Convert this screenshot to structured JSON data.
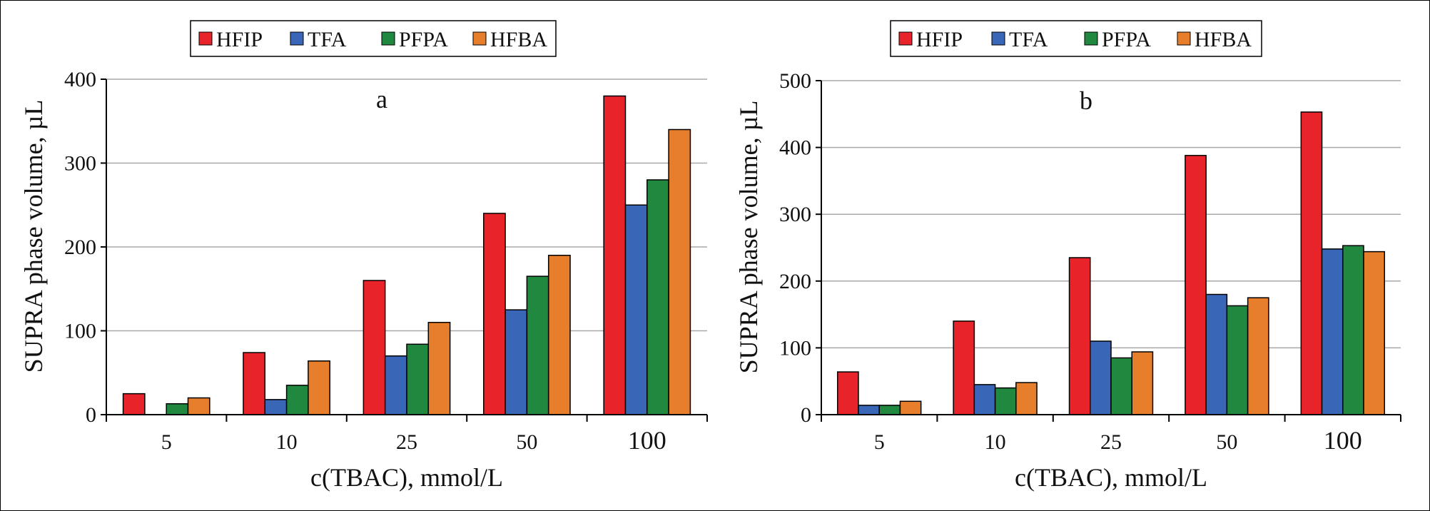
{
  "chart_data": [
    {
      "type": "bar",
      "title": "",
      "panel_label": "a",
      "categories": [
        "5",
        "10",
        "25",
        "50",
        "100"
      ],
      "series": [
        {
          "name": "HFIP",
          "color": "#e8232a",
          "values": [
            25,
            74,
            160,
            240,
            380
          ]
        },
        {
          "name": "TFA",
          "color": "#3a66b7",
          "values": [
            0,
            18,
            70,
            125,
            250
          ]
        },
        {
          "name": "PFPA",
          "color": "#20893f",
          "values": [
            13,
            35,
            84,
            165,
            280
          ]
        },
        {
          "name": "HFBA",
          "color": "#e67e2c",
          "values": [
            20,
            64,
            110,
            190,
            340
          ]
        }
      ],
      "xlabel": "c(TBAC), mmol/L",
      "ylabel": "SUPRA phase volume, µL",
      "ylim": [
        0,
        400
      ],
      "yticks": [
        "0",
        "100",
        "200",
        "300",
        "400"
      ],
      "grid": true,
      "legend_position": "top-center"
    },
    {
      "type": "bar",
      "title": "",
      "panel_label": "b",
      "categories": [
        "5",
        "10",
        "25",
        "50",
        "100"
      ],
      "series": [
        {
          "name": "HFIP",
          "color": "#e8232a",
          "values": [
            64,
            140,
            235,
            388,
            453
          ]
        },
        {
          "name": "TFA",
          "color": "#3a66b7",
          "values": [
            14,
            45,
            110,
            180,
            248
          ]
        },
        {
          "name": "PFPA",
          "color": "#20893f",
          "values": [
            14,
            40,
            85,
            163,
            253
          ]
        },
        {
          "name": "HFBA",
          "color": "#e67e2c",
          "values": [
            20,
            48,
            94,
            175,
            244
          ]
        }
      ],
      "xlabel": "c(TBAC), mmol/L",
      "ylabel": "SUPRA phase volume, µL",
      "ylim": [
        0,
        500
      ],
      "yticks": [
        "0",
        "100",
        "200",
        "300",
        "400",
        "500"
      ],
      "grid": true,
      "legend_position": "top-center"
    }
  ]
}
